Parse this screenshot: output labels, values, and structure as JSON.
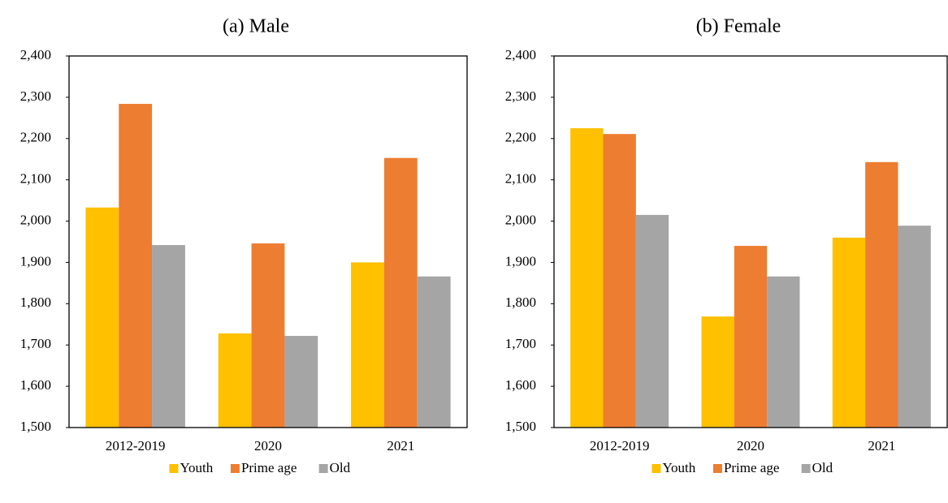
{
  "chart_data": [
    {
      "type": "bar",
      "title": "(a)  Male",
      "categories": [
        "2012-2019",
        "2020",
        "2021"
      ],
      "series": [
        {
          "name": "Youth",
          "color": "#ffc000",
          "values": [
            2033,
            1728,
            1900
          ]
        },
        {
          "name": "Prime age",
          "color": "#ed7d31",
          "values": [
            2284,
            1946,
            2153
          ]
        },
        {
          "name": "Old",
          "color": "#a5a5a5",
          "values": [
            1942,
            1722,
            1866
          ]
        }
      ],
      "ylim": [
        1500,
        2400
      ],
      "yticks": [
        {
          "value": 1500,
          "label": "1,500"
        },
        {
          "value": 1600,
          "label": "1,600"
        },
        {
          "value": 1700,
          "label": "1,700"
        },
        {
          "value": 1800,
          "label": "1,800"
        },
        {
          "value": 1900,
          "label": "1,900"
        },
        {
          "value": 2000,
          "label": "2,000"
        },
        {
          "value": 2100,
          "label": "2,100"
        },
        {
          "value": 2200,
          "label": "2,200"
        },
        {
          "value": 2300,
          "label": "2,300"
        },
        {
          "value": 2400,
          "label": "2,400"
        }
      ],
      "grid": false,
      "legend": "bottom"
    },
    {
      "type": "bar",
      "title": "(b) Female",
      "categories": [
        "2012-2019",
        "2020",
        "2021"
      ],
      "series": [
        {
          "name": "Youth",
          "color": "#ffc000",
          "values": [
            2225,
            1769,
            1960
          ]
        },
        {
          "name": "Prime age",
          "color": "#ed7d31",
          "values": [
            2211,
            1940,
            2143
          ]
        },
        {
          "name": "Old",
          "color": "#a5a5a5",
          "values": [
            2015,
            1866,
            1989
          ]
        }
      ],
      "ylim": [
        1500,
        2400
      ],
      "yticks": [
        {
          "value": 1500,
          "label": "1,500"
        },
        {
          "value": 1600,
          "label": "1,600"
        },
        {
          "value": 1700,
          "label": "1,700"
        },
        {
          "value": 1800,
          "label": "1,800"
        },
        {
          "value": 1900,
          "label": "1,900"
        },
        {
          "value": 2000,
          "label": "2,000"
        },
        {
          "value": 2100,
          "label": "2,100"
        },
        {
          "value": 2200,
          "label": "2,200"
        },
        {
          "value": 2300,
          "label": "2,300"
        },
        {
          "value": 2400,
          "label": "2,400"
        }
      ],
      "grid": false,
      "legend": "bottom"
    }
  ]
}
